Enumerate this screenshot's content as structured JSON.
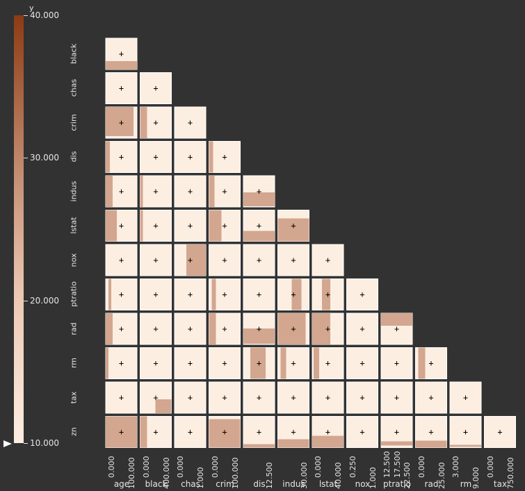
{
  "colorbar": {
    "title": "y",
    "ticks": [
      {
        "label": "40.000",
        "value": 40
      },
      {
        "label": "30.000",
        "value": 30
      },
      {
        "label": "20.000",
        "value": 20
      },
      {
        "label": "10.000",
        "value": 10
      }
    ],
    "min": 10,
    "max": 40,
    "colors": {
      "high": "#8d3b12",
      "mid": "#c8947a",
      "low": "#fdeee2"
    }
  },
  "chart_data": {
    "type": "heatmap",
    "variables_x": [
      "age",
      "black",
      "chas",
      "crim",
      "dis",
      "indus",
      "lstat",
      "nox",
      "ptratio",
      "rad",
      "rm",
      "tax"
    ],
    "variables_y": [
      "black",
      "chas",
      "crim",
      "dis",
      "indus",
      "lstat",
      "nox",
      "ptratio",
      "rad",
      "rm",
      "tax",
      "zn"
    ],
    "x_ticks": [
      {
        "min": "0.000",
        "max": "100.000"
      },
      {
        "min": "0.000",
        "max": "400.000"
      },
      {
        "min": "0.000",
        "max": "1.000"
      },
      {
        "min": "0.000",
        "max": "100.000"
      },
      {
        "min": "",
        "max": "12.500"
      },
      {
        "min": "",
        "max": "30.000"
      },
      {
        "min": "0.000",
        "max": "40.000"
      },
      {
        "min": "0.250",
        "max": "1.000"
      },
      {
        "min": "12.500",
        "max": "22.500"
      },
      {
        "min": "0.000",
        "max": "25.000"
      },
      {
        "min": "3.000",
        "max": "9.000"
      },
      {
        "min": "0.000",
        "max": "750.000"
      }
    ],
    "extra_tick": "17.500",
    "background_color": "#fdeee2",
    "frame_color": "#ffffff",
    "marker": "+"
  }
}
